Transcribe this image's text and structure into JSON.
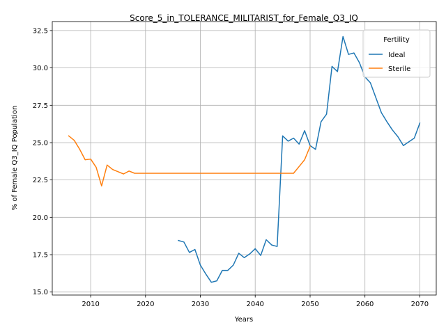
{
  "chart_data": {
    "type": "line",
    "title": "Score_5_in_TOLERANCE_MILITARIST_for_Female_Q3_IQ",
    "xlabel": "Years",
    "ylabel": "% of Female Q3_IQ Population",
    "xlim": [
      2003,
      2073
    ],
    "ylim": [
      14.8,
      33.1
    ],
    "x_ticks": [
      2010,
      2020,
      2030,
      2040,
      2050,
      2060,
      2070
    ],
    "y_ticks": [
      15.0,
      17.5,
      20.0,
      22.5,
      25.0,
      27.5,
      30.0,
      32.5
    ],
    "y_tick_labels": [
      "15.0",
      "17.5",
      "20.0",
      "22.5",
      "25.0",
      "27.5",
      "30.0",
      "32.5"
    ],
    "grid": true,
    "legend": {
      "title": "Fertility",
      "placement": "top-right"
    },
    "series": [
      {
        "name": "Ideal",
        "color": "#1f77b4",
        "points": [
          [
            2026,
            18.45
          ],
          [
            2027,
            18.35
          ],
          [
            2028,
            17.65
          ],
          [
            2029,
            17.85
          ],
          [
            2030,
            16.8
          ],
          [
            2031,
            16.2
          ],
          [
            2032,
            15.65
          ],
          [
            2033,
            15.75
          ],
          [
            2034,
            16.45
          ],
          [
            2035,
            16.45
          ],
          [
            2036,
            16.8
          ],
          [
            2037,
            17.6
          ],
          [
            2038,
            17.3
          ],
          [
            2039,
            17.55
          ],
          [
            2040,
            17.9
          ],
          [
            2041,
            17.45
          ],
          [
            2042,
            18.5
          ],
          [
            2043,
            18.15
          ],
          [
            2044,
            18.05
          ],
          [
            2045,
            25.45
          ],
          [
            2046,
            25.1
          ],
          [
            2047,
            25.3
          ],
          [
            2048,
            24.9
          ],
          [
            2049,
            25.8
          ],
          [
            2050,
            24.8
          ],
          [
            2051,
            24.55
          ],
          [
            2052,
            26.4
          ],
          [
            2053,
            26.9
          ],
          [
            2054,
            30.1
          ],
          [
            2055,
            29.75
          ],
          [
            2056,
            32.1
          ],
          [
            2057,
            30.9
          ],
          [
            2058,
            31.0
          ],
          [
            2059,
            30.35
          ],
          [
            2060,
            29.4
          ],
          [
            2061,
            29.0
          ],
          [
            2062,
            28.0
          ],
          [
            2063,
            27.0
          ],
          [
            2064,
            26.4
          ],
          [
            2065,
            25.85
          ],
          [
            2066,
            25.4
          ],
          [
            2067,
            24.8
          ],
          [
            2068,
            25.05
          ],
          [
            2069,
            25.3
          ],
          [
            2070,
            26.3
          ]
        ]
      },
      {
        "name": "Sterile",
        "color": "#ff7f0e",
        "points": [
          [
            2006,
            25.45
          ],
          [
            2007,
            25.15
          ],
          [
            2008,
            24.55
          ],
          [
            2009,
            23.85
          ],
          [
            2010,
            23.9
          ],
          [
            2011,
            23.35
          ],
          [
            2012,
            22.1
          ],
          [
            2013,
            23.5
          ],
          [
            2014,
            23.2
          ],
          [
            2015,
            23.05
          ],
          [
            2016,
            22.9
          ],
          [
            2017,
            23.1
          ],
          [
            2018,
            22.95
          ],
          [
            2019,
            22.95
          ],
          [
            2020,
            22.95
          ],
          [
            2025,
            22.95
          ],
          [
            2030,
            22.95
          ],
          [
            2035,
            22.95
          ],
          [
            2040,
            22.95
          ],
          [
            2045,
            22.95
          ],
          [
            2046,
            22.95
          ],
          [
            2047,
            22.95
          ],
          [
            2048,
            23.4
          ],
          [
            2049,
            23.85
          ],
          [
            2050,
            24.75
          ]
        ]
      }
    ]
  }
}
